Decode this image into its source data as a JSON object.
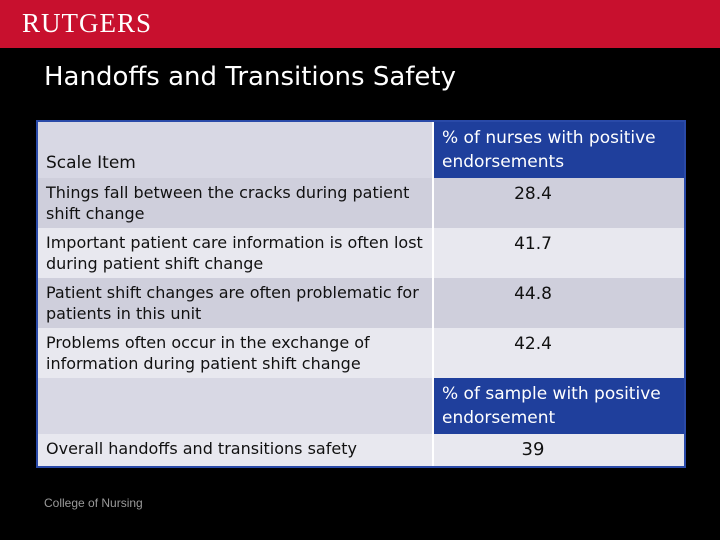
{
  "header": {
    "logo": "RUTGERS"
  },
  "title": "Handoffs and Transitions Safety",
  "table": {
    "columns": [
      "Scale Item",
      "% of nurses with positive endorsements"
    ],
    "rows": [
      [
        "Things fall between the cracks during patient shift change",
        28.4
      ],
      [
        "Important patient care information is often lost during patient shift change",
        41.7
      ],
      [
        "Patient shift changes are often problematic for patients in this unit",
        44.8
      ],
      [
        "Problems often occur in the exchange of information during patient shift change",
        42.4
      ]
    ],
    "summary_header": "% of sample with positive endorsement",
    "summary_row": [
      "Overall handoffs and transitions safety",
      39
    ]
  },
  "footer": "College of Nursing"
}
